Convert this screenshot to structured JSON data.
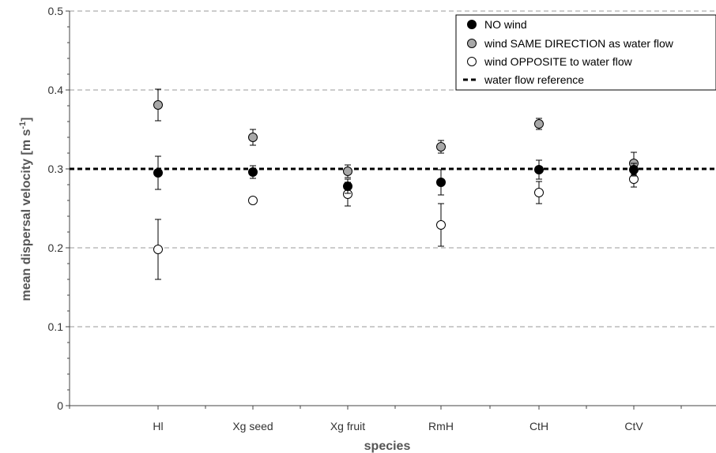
{
  "chart_data": {
    "type": "scatter",
    "xlabel": "species",
    "ylabel": "mean dispersal velocity [m s",
    "ylabel_sup": "-1",
    "ylabel_close": "]",
    "categories": [
      "Hl",
      "Xg seed",
      "Xg fruit",
      "RmH",
      "CtH",
      "CtV"
    ],
    "ylim": [
      0,
      0.5
    ],
    "yticks": [
      0,
      0.1,
      0.2,
      0.3,
      0.4,
      0.5
    ],
    "ytick_labels": [
      "0",
      "0.1",
      "0.2",
      "0.3",
      "0.4",
      "0.5"
    ],
    "grid": true,
    "legend_position": "top-right",
    "series": [
      {
        "name": "NO wind",
        "marker": "filled-black",
        "values": [
          0.295,
          0.296,
          0.278,
          0.283,
          0.299,
          0.299
        ],
        "err": [
          0.021,
          0.008,
          0.009,
          0.016,
          0.012,
          0.008
        ]
      },
      {
        "name": "wind SAME DIRECTION as water flow",
        "marker": "filled-gray",
        "values": [
          0.381,
          0.34,
          0.297,
          0.328,
          0.357,
          0.307
        ],
        "err": [
          0.02,
          0.01,
          0.008,
          0.008,
          0.007,
          0.014
        ]
      },
      {
        "name": "wind OPPOSITE to water flow",
        "marker": "open",
        "values": [
          0.198,
          0.26,
          0.268,
          0.229,
          0.27,
          0.287
        ],
        "err": [
          0.038,
          0.004,
          0.015,
          0.027,
          0.014,
          0.01
        ]
      }
    ],
    "reference_line": {
      "name": "water flow reference",
      "value": 0.3
    }
  }
}
